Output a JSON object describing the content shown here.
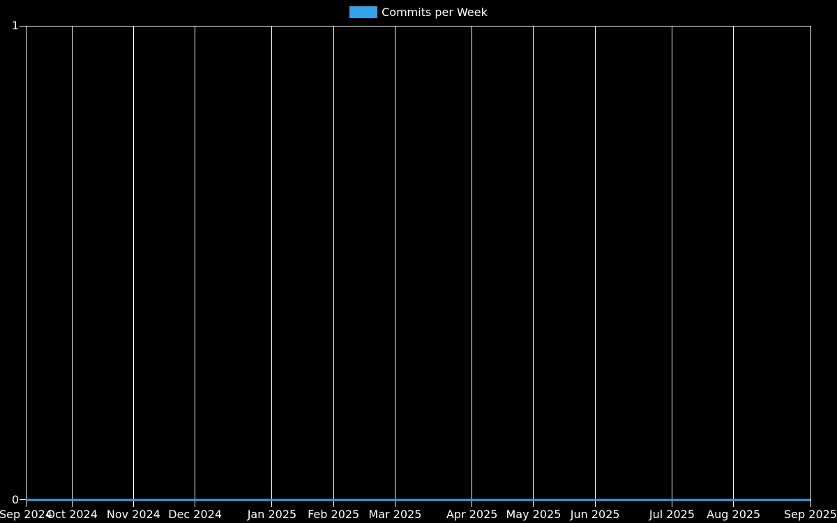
{
  "colors": {
    "background": "#000000",
    "accent": "#36a2eb",
    "grid": "#ffffff",
    "text": "#ffffff"
  },
  "chart_data": {
    "type": "line",
    "title": "",
    "legend": {
      "label": "Commits per Week",
      "position": "top",
      "swatch_color": "#36a2eb"
    },
    "x": {
      "tick_labels": [
        "Sep 2024",
        "Oct 2024",
        "Nov 2024",
        "Dec 2024",
        "Jan 2025",
        "Feb 2025",
        "Mar 2025",
        "Apr 2025",
        "May 2025",
        "Jun 2025",
        "Jul 2025",
        "Aug 2025",
        "Sep 2025"
      ],
      "tick_week_offsets": [
        0,
        3,
        7,
        11,
        16,
        20,
        24,
        29,
        33,
        37,
        42,
        46,
        51
      ],
      "range_weeks": [
        0,
        51
      ]
    },
    "y": {
      "tick_labels": [
        "0",
        "1"
      ],
      "range": [
        0,
        1
      ]
    },
    "grid": true,
    "series": [
      {
        "name": "Commits per Week",
        "color": "#36a2eb",
        "line_width": 3,
        "values": [
          0,
          0,
          0,
          0,
          0,
          0,
          0,
          0,
          0,
          0,
          0,
          0,
          0,
          0,
          0,
          0,
          0,
          0,
          0,
          0,
          0,
          0,
          0,
          0,
          0,
          0,
          0,
          0,
          0,
          0,
          0,
          0,
          0,
          0,
          0,
          0,
          0,
          0,
          0,
          0,
          0,
          0,
          0,
          0,
          0,
          0,
          0,
          0,
          0,
          0,
          0,
          0
        ]
      }
    ]
  }
}
